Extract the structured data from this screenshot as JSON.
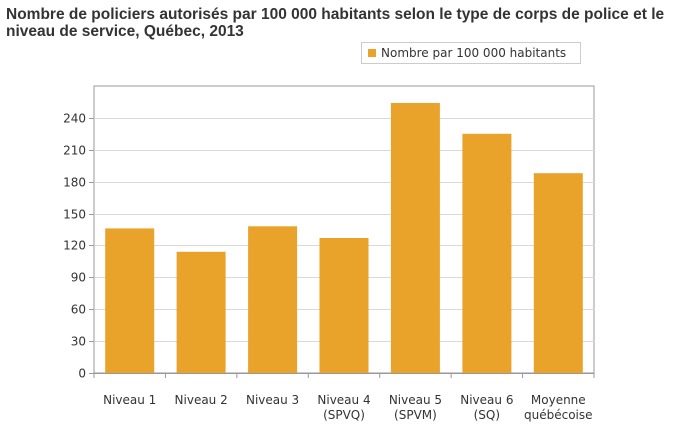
{
  "chart_data": {
    "type": "bar",
    "title": "Nombre de policiers autorisés par 100 000 habitants selon le type de corps de police et le niveau de service, Québec, 2013",
    "categories": [
      [
        "Niveau 1"
      ],
      [
        "Niveau 2"
      ],
      [
        "Niveau 3"
      ],
      [
        "Niveau 4",
        "(SPVQ)"
      ],
      [
        "Niveau 5",
        "(SPVM)"
      ],
      [
        "Niveau 6",
        "(SQ)"
      ],
      [
        "Moyenne",
        "québécoise"
      ]
    ],
    "series": [
      {
        "name": "Nombre par 100 000 habitants",
        "values": [
          136,
          114,
          138,
          127,
          254,
          225,
          188
        ]
      }
    ],
    "yticks": [
      0,
      30,
      60,
      90,
      120,
      150,
      180,
      210,
      240
    ],
    "ylim": [
      0,
      270
    ],
    "xlabel": "",
    "ylabel": "",
    "grid": true,
    "legend_position": "top-right",
    "bar_color": "#e9a22a",
    "grid_color": "#d9d9d9",
    "axis_color": "#999999"
  }
}
